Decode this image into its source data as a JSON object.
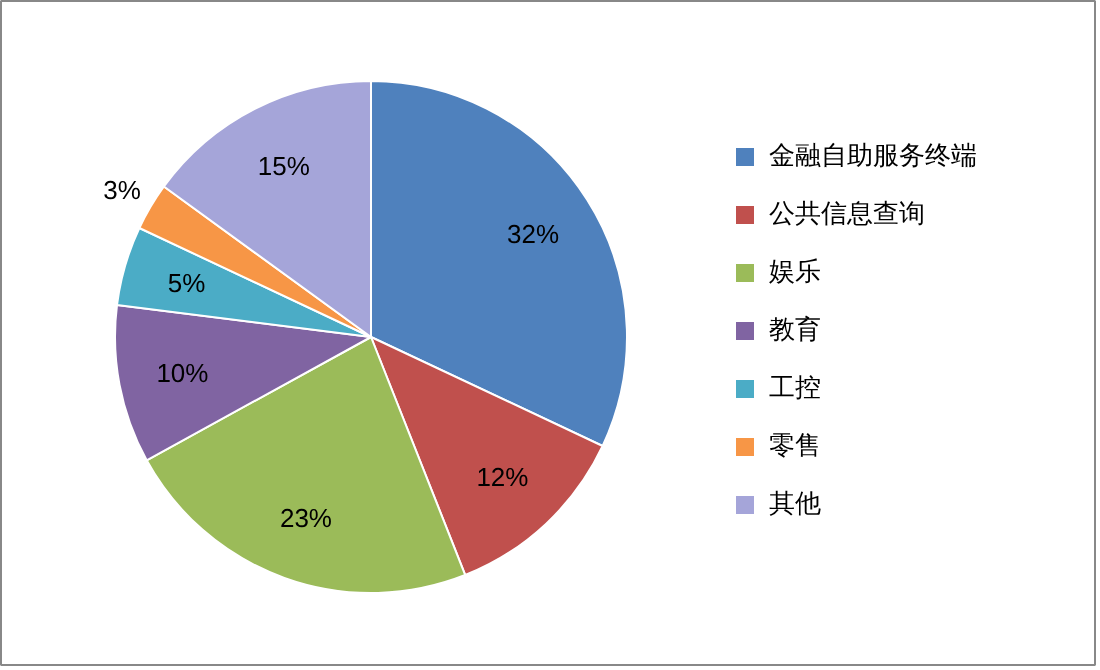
{
  "chart_data": {
    "type": "pie",
    "categories": [
      "金融自助服务终端",
      "公共信息查询",
      "娱乐",
      "教育",
      "工控",
      "零售",
      "其他"
    ],
    "values": [
      32,
      12,
      23,
      10,
      5,
      3,
      15
    ],
    "colors": [
      "#4f81bd",
      "#c0504d",
      "#9bbb59",
      "#8064a2",
      "#4bacc6",
      "#f79646",
      "#a5a5d9"
    ],
    "value_labels": [
      "32%",
      "12%",
      "23%",
      "10%",
      "5%",
      "3%",
      "15%"
    ],
    "legend": "right"
  }
}
